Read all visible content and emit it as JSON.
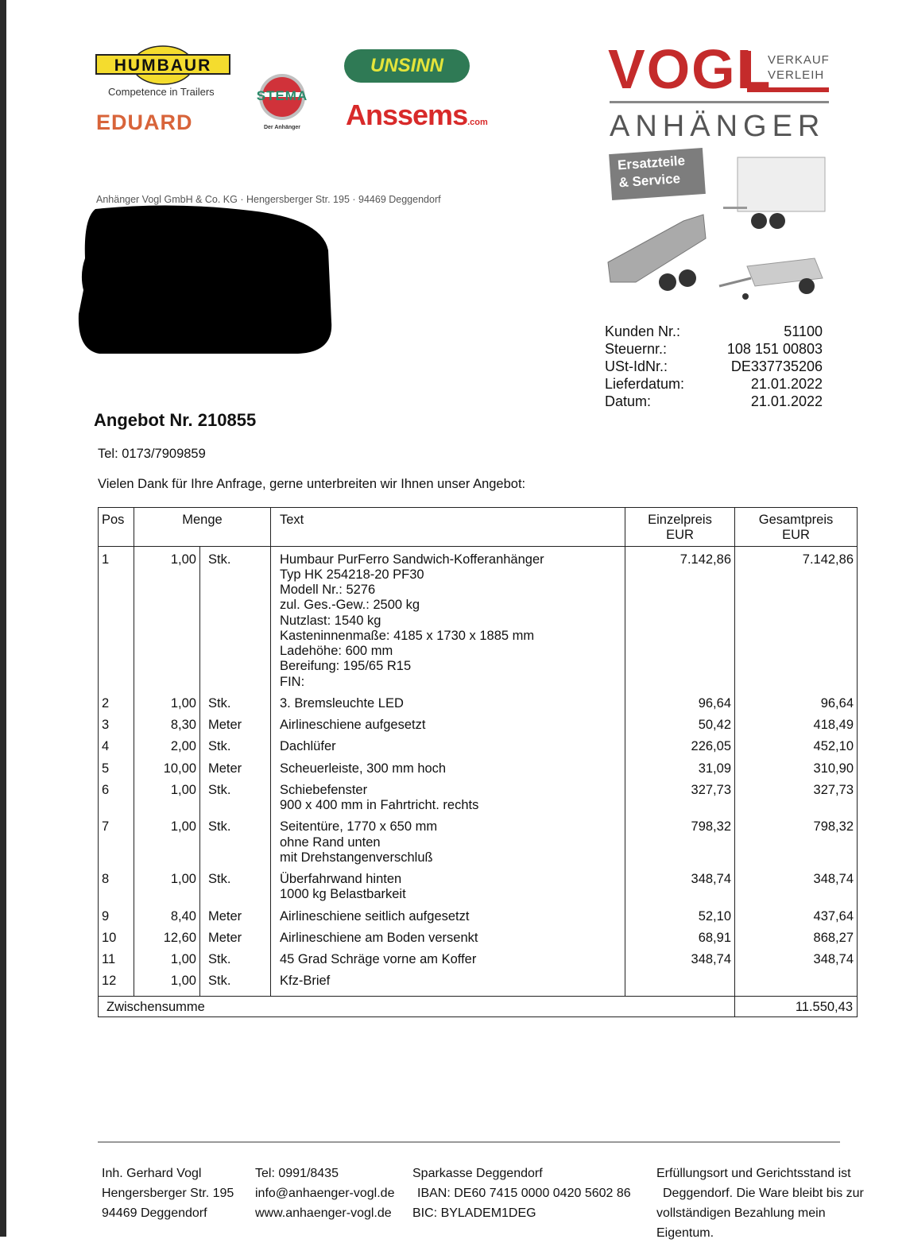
{
  "logos": {
    "humbaur": "HUMBAUR",
    "humbaur_tagline": "Competence in Trailers",
    "eduard": "EDUARD",
    "stema": "STEMA",
    "stema_tagline": "Der Anhänger",
    "unsinn": "UNSINN",
    "anssems": "Anssems",
    "anssems_suffix": ".com",
    "vogl": "VOGL",
    "vogl_verkauf": "VERKAUF",
    "vogl_verleih": "VERLEIH",
    "vogl_anhaenger": "ANHÄNGER",
    "ersatzteile_line1": "Ersatzteile",
    "ersatzteile_line2": "& Service"
  },
  "sender_line": "Anhänger Vogl GmbH & Co. KG · Hengersberger Str. 195 · 94469 Deggendorf",
  "info": [
    {
      "label": "Kunden Nr.:",
      "value": "51100"
    },
    {
      "label": "Steuernr.:",
      "value": "108  151  00803"
    },
    {
      "label": "USt-IdNr.:",
      "value": "DE337735206"
    },
    {
      "label": "Lieferdatum:",
      "value": "21.01.2022"
    },
    {
      "label": "Datum:",
      "value": "21.01.2022"
    }
  ],
  "title": "Angebot Nr. 210855",
  "tel": "Tel: 0173/7909859",
  "intro": "Vielen Dank für Ihre Anfrage, gerne unterbreiten wir Ihnen unser Angebot:",
  "table": {
    "headers": {
      "pos": "Pos",
      "menge": "Menge",
      "text": "Text",
      "einzel1": "Einzelpreis",
      "einzel2": "EUR",
      "gesamt1": "Gesamtpreis",
      "gesamt2": "EUR"
    },
    "rows": [
      {
        "pos": "1",
        "qty": "1,00",
        "unit": "Stk.",
        "text": "Humbaur PurFerro Sandwich-Kofferanhänger\nTyp HK 254218-20 PF30\nModell Nr.: 5276\nzul. Ges.-Gew.: 2500 kg\nNutzlast: 1540 kg\nKasteninnenmaße: 4185 x 1730 x 1885 mm\nLadehöhe: 600 mm\nBereifung: 195/65 R15\nFIN:",
        "unit_price": "7.142,86",
        "total": "7.142,86"
      },
      {
        "pos": "2",
        "qty": "1,00",
        "unit": "Stk.",
        "text": "3. Bremsleuchte LED",
        "unit_price": "96,64",
        "total": "96,64"
      },
      {
        "pos": "3",
        "qty": "8,30",
        "unit": "Meter",
        "text": "Airlineschiene aufgesetzt",
        "unit_price": "50,42",
        "total": "418,49"
      },
      {
        "pos": "4",
        "qty": "2,00",
        "unit": "Stk.",
        "text": "Dachlüfer",
        "unit_price": "226,05",
        "total": "452,10"
      },
      {
        "pos": "5",
        "qty": "10,00",
        "unit": "Meter",
        "text": "Scheuerleiste, 300 mm hoch",
        "unit_price": "31,09",
        "total": "310,90"
      },
      {
        "pos": "6",
        "qty": "1,00",
        "unit": "Stk.",
        "text": "Schiebefenster\n900 x 400 mm in Fahrtricht. rechts",
        "unit_price": "327,73",
        "total": "327,73"
      },
      {
        "pos": "7",
        "qty": "1,00",
        "unit": "Stk.",
        "text": "Seitentüre, 1770 x 650 mm\nohne Rand unten\nmit Drehstangenverschluß",
        "unit_price": "798,32",
        "total": "798,32"
      },
      {
        "pos": "8",
        "qty": "1,00",
        "unit": "Stk.",
        "text": "Überfahrwand hinten\n1000 kg Belastbarkeit",
        "unit_price": "348,74",
        "total": "348,74"
      },
      {
        "pos": "9",
        "qty": "8,40",
        "unit": "Meter",
        "text": "Airlineschiene seitlich aufgesetzt",
        "unit_price": "52,10",
        "total": "437,64"
      },
      {
        "pos": "10",
        "qty": "12,60",
        "unit": "Meter",
        "text": "Airlineschiene am Boden versenkt",
        "unit_price": "68,91",
        "total": "868,27"
      },
      {
        "pos": "11",
        "qty": "1,00",
        "unit": "Stk.",
        "text": "45 Grad Schräge vorne am Koffer",
        "unit_price": "348,74",
        "total": "348,74"
      },
      {
        "pos": "12",
        "qty": "1,00",
        "unit": "Stk.",
        "text": "Kfz-Brief",
        "unit_price": "",
        "total": ""
      }
    ],
    "subtotal_label": "Zwischensumme",
    "subtotal": "11.550,43"
  },
  "footer": {
    "col1": [
      "Inh. Gerhard Vogl",
      "Hengersberger Str. 195",
      "94469 Deggendorf"
    ],
    "col2": [
      "Tel: 0991/8435",
      "info@anhaenger-vogl.de",
      "www.anhaenger-vogl.de"
    ],
    "col3": [
      "Sparkasse Deggendorf",
      "IBAN: DE60 7415 0000 0420 5602 86",
      "BIC: BYLADEM1DEG"
    ],
    "col4": [
      "Erfüllungsort und Gerichtsstand ist",
      "Deggendorf. Die Ware bleibt bis zur",
      "vollständigen Bezahlung mein",
      "Eigentum."
    ]
  },
  "colors": {
    "vogl_red": "#c42b2b",
    "unsinn_green": "#2f7a55",
    "eduard_orange": "#d8643a",
    "anssems_red": "#d82a2a",
    "humbaur_yellow": "#f4dc2e"
  }
}
